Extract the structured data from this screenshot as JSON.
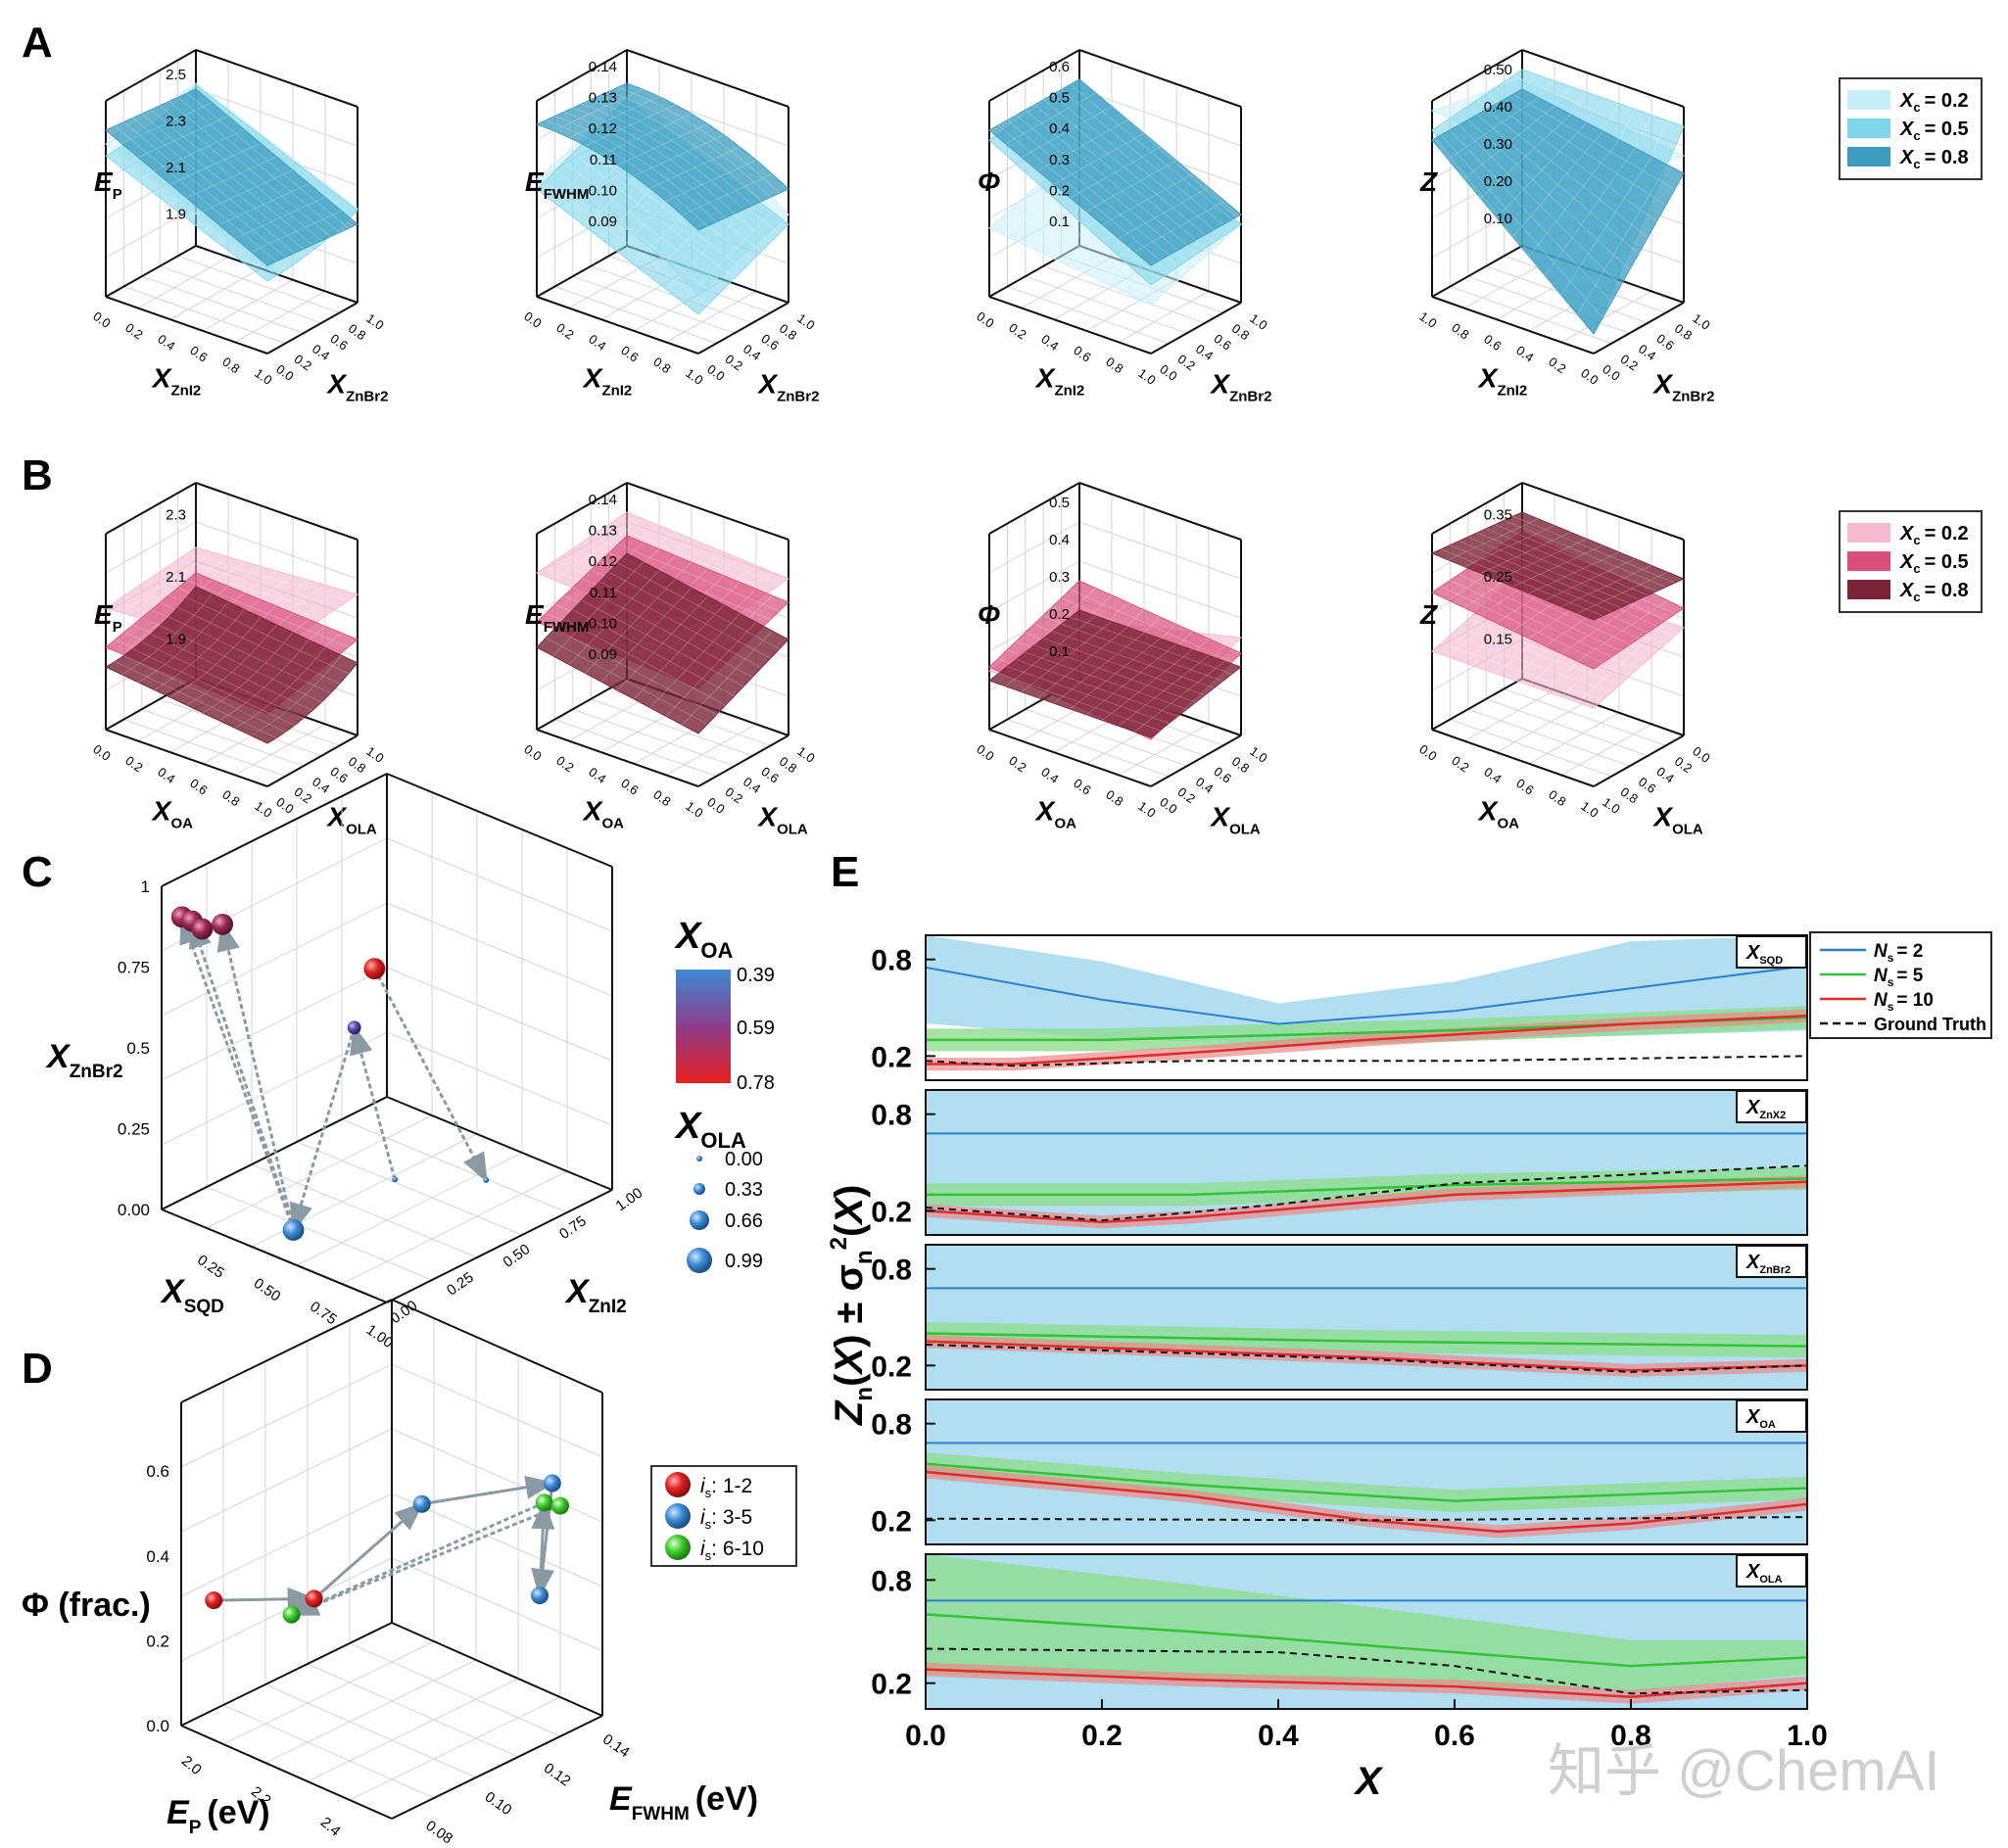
{
  "panel_letters": [
    "A",
    "B",
    "C",
    "D",
    "E"
  ],
  "watermark": "知乎 @ChemAI",
  "colors": {
    "cyan_light": "#c6eff7",
    "cyan_mid": "#7fd6ea",
    "cyan_dark": "#3b9cbf",
    "pink_light": "#f4b8cf",
    "pink_mid": "#d94f79",
    "pink_dark": "#7b2337",
    "blue": "#2f7fd0",
    "green": "#33c233",
    "red": "#e02b2b",
    "band_blue": "#a9dcef",
    "band_green": "#8fdc8f",
    "band_red": "#e98a8a"
  },
  "chart_data": [
    {
      "id": "A",
      "type": "surface3d",
      "series_type": "surface",
      "subplots": [
        {
          "zlabel": "E",
          "zlabel_sub": "P",
          "zticks": [
            "2.5",
            "2.3",
            "2.1",
            "1.9"
          ],
          "xlabel": "X",
          "xlabel_sub": "ZnI2",
          "ylabel": "X",
          "ylabel_sub": "ZnBr2",
          "xticks": [
            "0.0",
            "0.2",
            "0.4",
            "0.6",
            "0.8",
            "1.0"
          ],
          "yticks": [
            "0.0",
            "0.2",
            "0.4",
            "0.6",
            "0.8",
            "1.0"
          ]
        },
        {
          "zlabel": "E",
          "zlabel_sub": "FWHM",
          "zticks": [
            "0.14",
            "0.13",
            "0.12",
            "0.11",
            "0.10",
            "0.09"
          ],
          "xlabel": "X",
          "xlabel_sub": "ZnI2",
          "ylabel": "X",
          "ylabel_sub": "ZnBr2",
          "xticks": [
            "0.0",
            "0.2",
            "0.4",
            "0.6",
            "0.8",
            "1.0"
          ],
          "yticks": [
            "0.0",
            "0.2",
            "0.4",
            "0.6",
            "0.8",
            "1.0"
          ]
        },
        {
          "zlabel": "Φ",
          "zlabel_sub": "",
          "zticks": [
            "0.6",
            "0.5",
            "0.4",
            "0.3",
            "0.2",
            "0.1"
          ],
          "xlabel": "X",
          "xlabel_sub": "ZnI2",
          "ylabel": "X",
          "ylabel_sub": "ZnBr2",
          "xticks": [
            "0.0",
            "0.2",
            "0.4",
            "0.6",
            "0.8",
            "1.0"
          ],
          "yticks": [
            "0.0",
            "0.2",
            "0.4",
            "0.6",
            "0.8",
            "1.0"
          ]
        },
        {
          "zlabel": "Z",
          "zlabel_sub": "",
          "zticks": [
            "0.50",
            "0.40",
            "0.30",
            "0.20",
            "0.10"
          ],
          "xlabel": "X",
          "xlabel_sub": "ZnI2",
          "ylabel": "X",
          "ylabel_sub": "ZnBr2",
          "xticks": [
            "1.0",
            "0.8",
            "0.6",
            "0.4",
            "0.2",
            "0.0"
          ],
          "yticks": [
            "0.0",
            "0.2",
            "0.4",
            "0.6",
            "0.8",
            "1.0"
          ]
        }
      ],
      "legend": [
        {
          "label": "X",
          "sub": "c",
          "value": "= 0.2"
        },
        {
          "label": "X",
          "sub": "c",
          "value": "= 0.5"
        },
        {
          "label": "X",
          "sub": "c",
          "value": "= 0.8"
        }
      ]
    },
    {
      "id": "B",
      "type": "surface3d",
      "subplots": [
        {
          "zlabel": "E",
          "zlabel_sub": "P",
          "zticks": [
            "2.3",
            "2.1",
            "1.9"
          ],
          "xlabel": "X",
          "xlabel_sub": "OA",
          "ylabel": "X",
          "ylabel_sub": "OLA",
          "xticks": [
            "0.0",
            "0.2",
            "0.4",
            "0.6",
            "0.8",
            "1.0"
          ],
          "yticks": [
            "0.0",
            "0.2",
            "0.4",
            "0.6",
            "0.8",
            "1.0"
          ]
        },
        {
          "zlabel": "E",
          "zlabel_sub": "FWHM",
          "zticks": [
            "0.14",
            "0.13",
            "0.12",
            "0.11",
            "0.10",
            "0.09"
          ],
          "xlabel": "X",
          "xlabel_sub": "OA",
          "ylabel": "X",
          "ylabel_sub": "OLA",
          "xticks": [
            "0.0",
            "0.2",
            "0.4",
            "0.6",
            "0.8",
            "1.0"
          ],
          "yticks": [
            "0.0",
            "0.2",
            "0.4",
            "0.6",
            "0.8",
            "1.0"
          ]
        },
        {
          "zlabel": "Φ",
          "zlabel_sub": "",
          "zticks": [
            "0.5",
            "0.4",
            "0.3",
            "0.2",
            "0.1"
          ],
          "xlabel": "X",
          "xlabel_sub": "OA",
          "ylabel": "X",
          "ylabel_sub": "OLA",
          "xticks": [
            "0.0",
            "0.2",
            "0.4",
            "0.6",
            "0.8",
            "1.0"
          ],
          "yticks": [
            "0.0",
            "0.2",
            "0.4",
            "0.6",
            "0.8",
            "1.0"
          ]
        },
        {
          "zlabel": "Z",
          "zlabel_sub": "",
          "zticks": [
            "0.35",
            "0.25",
            "0.15"
          ],
          "xlabel": "X",
          "xlabel_sub": "OA",
          "ylabel": "X",
          "ylabel_sub": "OLA",
          "xticks": [
            "0.0",
            "0.2",
            "0.4",
            "0.6",
            "0.8",
            "1.0"
          ],
          "yticks": [
            "1.0",
            "0.8",
            "0.6",
            "0.4",
            "0.2",
            "0.0"
          ]
        }
      ],
      "legend": [
        {
          "label": "X",
          "sub": "c",
          "value": "= 0.2"
        },
        {
          "label": "X",
          "sub": "c",
          "value": "= 0.5"
        },
        {
          "label": "X",
          "sub": "c",
          "value": "= 0.8"
        }
      ]
    },
    {
      "id": "C",
      "type": "scatter3d",
      "zlabel": "X",
      "zlabel_sub": "ZnBr2",
      "xlabel": "X",
      "xlabel_sub": "SQD",
      "ylabel": "X",
      "ylabel_sub": "ZnI2",
      "zticks": [
        "1",
        "0.75",
        "0.5",
        "0.25",
        "0.00"
      ],
      "xticks": [
        "0.25",
        "0.50",
        "0.75",
        "1.00"
      ],
      "yticks": [
        "0.00",
        "0.25",
        "0.50",
        "0.75",
        "1.00"
      ],
      "points": [
        {
          "sqd": 0.05,
          "zni2": 0.05,
          "znbr2": 0.95,
          "xoa": 0.55,
          "xola": 0.66
        },
        {
          "sqd": 0.1,
          "zni2": 0.05,
          "znbr2": 0.95,
          "xoa": 0.55,
          "xola": 0.66
        },
        {
          "sqd": 0.12,
          "zni2": 0.08,
          "znbr2": 0.92,
          "xoa": 0.55,
          "xola": 0.66
        },
        {
          "sqd": 0.15,
          "zni2": 0.15,
          "znbr2": 0.92,
          "xoa": 0.5,
          "xola": 0.66
        },
        {
          "sqd": 0.45,
          "zni2": 0.5,
          "znbr2": 0.55,
          "xoa": 0.45,
          "xola": 0.33
        },
        {
          "sqd": 0.85,
          "zni2": 0.2,
          "znbr2": 0.95,
          "xoa": 0.78,
          "xola": 0.66
        },
        {
          "sqd": 0.55,
          "zni2": 0.1,
          "znbr2": 0.05,
          "xoa": 0.39,
          "xola": 0.66
        },
        {
          "sqd": 0.55,
          "zni2": 0.6,
          "znbr2": 0.05,
          "xoa": 0.39,
          "xola": 0.0
        },
        {
          "sqd": 0.8,
          "zni2": 0.8,
          "znbr2": 0.05,
          "xoa": 0.39,
          "xola": 0.0
        }
      ],
      "colorbar": {
        "label": "X",
        "sub": "OA",
        "ticks": [
          "0.39",
          "0.59",
          "0.78"
        ]
      },
      "size_legend": {
        "label": "X",
        "sub": "OLA",
        "ticks": [
          "0.00",
          "0.33",
          "0.66",
          "0.99"
        ]
      }
    },
    {
      "id": "D",
      "type": "scatter3d",
      "zlabel": "Φ (frac.)",
      "xlabel": "E",
      "xlabel_sub": "P",
      "xlabel_unit": "(eV)",
      "ylabel": "E",
      "ylabel_sub": "FWHM",
      "ylabel_unit": "(eV)",
      "zticks": [
        "0.6",
        "0.4",
        "0.2",
        "0.0"
      ],
      "xticks": [
        "2.0",
        "2.2",
        "2.4"
      ],
      "yticks": [
        "0.08",
        "0.10",
        "0.12",
        "0.14"
      ],
      "points": [
        {
          "ep": 1.95,
          "efwhm": 0.08,
          "phi": 0.28,
          "group": "1-2"
        },
        {
          "ep": 2.15,
          "efwhm": 0.09,
          "phi": 0.32,
          "group": "1-2"
        },
        {
          "ep": 2.2,
          "efwhm": 0.12,
          "phi": 0.45,
          "group": "3-5"
        },
        {
          "ep": 2.45,
          "efwhm": 0.13,
          "phi": 0.3,
          "group": "3-5"
        },
        {
          "ep": 2.4,
          "efwhm": 0.14,
          "phi": 0.5,
          "group": "3-5"
        },
        {
          "ep": 2.0,
          "efwhm": 0.1,
          "phi": 0.2,
          "group": "6-10"
        },
        {
          "ep": 2.42,
          "efwhm": 0.135,
          "phi": 0.48,
          "group": "6-10"
        },
        {
          "ep": 2.44,
          "efwhm": 0.138,
          "phi": 0.47,
          "group": "6-10"
        }
      ],
      "legend": [
        {
          "label": "i",
          "sub": "s",
          "value": ": 1-2"
        },
        {
          "label": "i",
          "sub": "s",
          "value": ": 3-5"
        },
        {
          "label": "i",
          "sub": "s",
          "value": ": 6-10"
        }
      ]
    },
    {
      "id": "E",
      "type": "line",
      "xlabel": "X",
      "ylabel": "Z",
      "ylabel_sub": "n",
      "ylabel_rest": "(X) ± σ",
      "ylabel_sub2": "n",
      "ylabel_sup": "2",
      "ylabel_end": "(X)",
      "xticks": [
        "0.0",
        "0.2",
        "0.4",
        "0.6",
        "0.8",
        "1.0"
      ],
      "yticks": [
        "0.8",
        "0.2"
      ],
      "xlim": [
        0,
        1
      ],
      "legend": [
        {
          "label": "N",
          "sub": "s",
          "value": "= 2"
        },
        {
          "label": "N",
          "sub": "s",
          "value": "= 5"
        },
        {
          "label": "N",
          "sub": "s",
          "value": "= 10"
        },
        {
          "label": "Ground Truth"
        }
      ],
      "rows": [
        {
          "tag": "X",
          "tag_sub": "SQD",
          "ns2": [
            [
              0,
              0.75
            ],
            [
              0.2,
              0.55
            ],
            [
              0.4,
              0.4
            ],
            [
              0.6,
              0.48
            ],
            [
              0.8,
              0.62
            ],
            [
              1,
              0.76
            ]
          ],
          "ns5": [
            [
              0,
              0.3
            ],
            [
              0.2,
              0.3
            ],
            [
              0.4,
              0.33
            ],
            [
              0.6,
              0.36
            ],
            [
              0.8,
              0.4
            ],
            [
              1,
              0.44
            ]
          ],
          "ns10": [
            [
              0,
              0.15
            ],
            [
              0.1,
              0.15
            ],
            [
              0.3,
              0.22
            ],
            [
              0.5,
              0.3
            ],
            [
              0.8,
              0.4
            ],
            [
              1,
              0.45
            ]
          ],
          "gt": [
            [
              0,
              0.17
            ],
            [
              0.1,
              0.14
            ],
            [
              0.3,
              0.17
            ],
            [
              0.6,
              0.17
            ],
            [
              1,
              0.2
            ]
          ]
        },
        {
          "tag": "X",
          "tag_sub": "ZnX2",
          "ns2": [
            [
              0,
              0.68
            ],
            [
              1,
              0.68
            ]
          ],
          "ns5": [
            [
              0,
              0.3
            ],
            [
              0.3,
              0.3
            ],
            [
              0.6,
              0.36
            ],
            [
              1,
              0.4
            ]
          ],
          "ns10": [
            [
              0,
              0.2
            ],
            [
              0.2,
              0.13
            ],
            [
              0.3,
              0.16
            ],
            [
              0.6,
              0.3
            ],
            [
              1,
              0.38
            ]
          ],
          "gt": [
            [
              0,
              0.22
            ],
            [
              0.2,
              0.14
            ],
            [
              0.4,
              0.24
            ],
            [
              0.6,
              0.37
            ],
            [
              1,
              0.48
            ]
          ]
        },
        {
          "tag": "X",
          "tag_sub": "ZnBr2",
          "ns2": [
            [
              0,
              0.68
            ],
            [
              1,
              0.68
            ]
          ],
          "ns5": [
            [
              0,
              0.4
            ],
            [
              0.5,
              0.35
            ],
            [
              1,
              0.32
            ]
          ],
          "ns10": [
            [
              0,
              0.35
            ],
            [
              0.5,
              0.25
            ],
            [
              0.8,
              0.17
            ],
            [
              1,
              0.2
            ]
          ],
          "gt": [
            [
              0,
              0.33
            ],
            [
              0.5,
              0.24
            ],
            [
              0.8,
              0.16
            ],
            [
              1,
              0.2
            ]
          ]
        },
        {
          "tag": "X",
          "tag_sub": "OA",
          "ns2": [
            [
              0,
              0.68
            ],
            [
              1,
              0.68
            ]
          ],
          "ns5": [
            [
              0,
              0.55
            ],
            [
              0.3,
              0.42
            ],
            [
              0.6,
              0.32
            ],
            [
              1,
              0.4
            ]
          ],
          "ns10": [
            [
              0,
              0.5
            ],
            [
              0.3,
              0.35
            ],
            [
              0.5,
              0.2
            ],
            [
              0.65,
              0.13
            ],
            [
              0.8,
              0.18
            ],
            [
              1,
              0.3
            ]
          ],
          "gt": [
            [
              0,
              0.21
            ],
            [
              0.5,
              0.2
            ],
            [
              1,
              0.22
            ]
          ]
        },
        {
          "tag": "X",
          "tag_sub": "OLA",
          "ns2": [
            [
              0,
              0.68
            ],
            [
              1,
              0.68
            ]
          ],
          "ns5": [
            [
              0,
              0.6
            ],
            [
              0.3,
              0.5
            ],
            [
              0.6,
              0.38
            ],
            [
              0.8,
              0.3
            ],
            [
              1,
              0.35
            ]
          ],
          "ns10": [
            [
              0,
              0.28
            ],
            [
              0.3,
              0.22
            ],
            [
              0.6,
              0.18
            ],
            [
              0.8,
              0.12
            ],
            [
              1,
              0.2
            ]
          ],
          "gt": [
            [
              0,
              0.4
            ],
            [
              0.4,
              0.38
            ],
            [
              0.6,
              0.3
            ],
            [
              0.8,
              0.14
            ],
            [
              1,
              0.16
            ]
          ]
        }
      ]
    }
  ]
}
